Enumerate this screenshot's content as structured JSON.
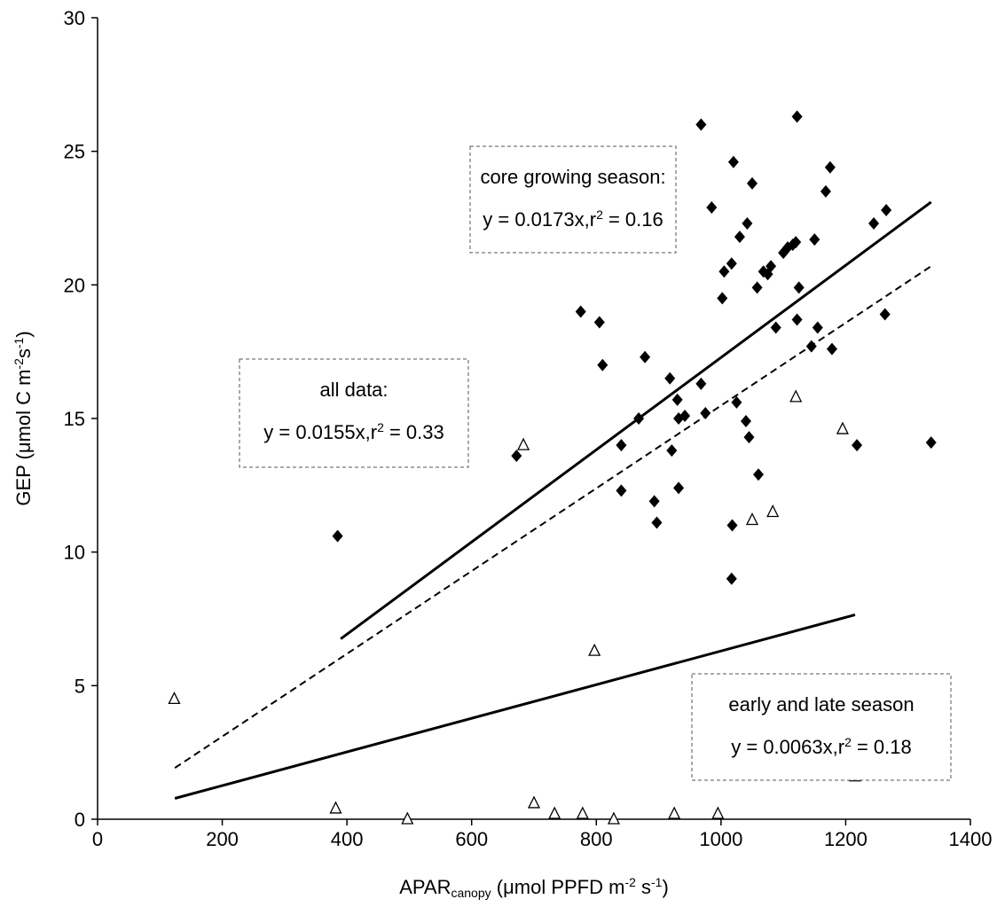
{
  "chart_data": {
    "type": "scatter",
    "xlabel": [
      {
        "text": "APAR"
      },
      {
        "text": "canopy",
        "shift": "sub"
      },
      {
        "text": " (μmol PPFD m"
      },
      {
        "text": "-2",
        "shift": "sup"
      },
      {
        "text": " s"
      },
      {
        "text": "-1",
        "shift": "sup"
      },
      {
        "text": ")"
      }
    ],
    "ylabel": [
      {
        "text": "GEP (μmol C m"
      },
      {
        "text": "-2",
        "shift": "sup"
      },
      {
        "text": "s"
      },
      {
        "text": "-1",
        "shift": "sup"
      },
      {
        "text": ")"
      }
    ],
    "xlim": [
      0,
      1400
    ],
    "xticks": [
      0,
      200,
      400,
      600,
      800,
      1000,
      1200,
      1400
    ],
    "ylim": [
      0,
      30
    ],
    "yticks": [
      0,
      5,
      10,
      15,
      20,
      25,
      30
    ],
    "series": [
      {
        "marker": "diamond",
        "color": "#000000",
        "x": [
          385,
          672,
          775,
          805,
          810,
          868,
          878,
          840,
          840,
          893,
          897,
          918,
          921,
          930,
          932,
          942,
          932,
          968,
          968,
          975,
          985,
          1002,
          1005,
          1017,
          1018,
          1017,
          1020,
          1025,
          1030,
          1042,
          1040,
          1050,
          1045,
          1058,
          1060,
          1068,
          1075,
          1080,
          1088,
          1100,
          1107,
          1115,
          1120,
          1122,
          1125,
          1122,
          1145,
          1155,
          1150,
          1168,
          1175,
          1178,
          1218,
          1245,
          1265,
          1263,
          1337
        ],
        "values": [
          10.6,
          13.6,
          19.0,
          18.6,
          17.0,
          15.0,
          17.3,
          14.0,
          12.3,
          11.9,
          11.1,
          16.5,
          13.8,
          15.7,
          15.0,
          15.1,
          12.4,
          26.0,
          16.3,
          15.2,
          22.9,
          19.5,
          20.5,
          20.8,
          11.0,
          9.0,
          24.6,
          15.6,
          21.8,
          22.3,
          14.9,
          23.8,
          14.3,
          19.9,
          12.9,
          20.5,
          20.4,
          20.7,
          18.4,
          21.2,
          21.4,
          21.5,
          21.6,
          26.3,
          19.9,
          18.7,
          17.7,
          18.4,
          21.7,
          23.5,
          24.4,
          17.6,
          14.0,
          22.3,
          22.8,
          18.9,
          14.1
        ]
      },
      {
        "marker": "triangle",
        "color": "#000000",
        "x": [
          123,
          382,
          497,
          683,
          700,
          733,
          778,
          797,
          828,
          925,
          995,
          1050,
          1083,
          1120,
          1195,
          1215
        ],
        "values": [
          4.5,
          0.4,
          0,
          14.0,
          0.6,
          0.2,
          0.2,
          6.3,
          0,
          0.2,
          0.2,
          11.2,
          11.5,
          15.8,
          14.6,
          1.6
        ]
      },
      {
        "marker": "line",
        "dash": false,
        "color": "#000000",
        "x": [
          390,
          1337
        ],
        "values": [
          6.75,
          23.1
        ]
      },
      {
        "marker": "line",
        "dash": true,
        "color": "#000000",
        "x": [
          124,
          1337
        ],
        "values": [
          1.92,
          20.7
        ]
      },
      {
        "marker": "line",
        "dash": false,
        "color": "#000000",
        "x": [
          124,
          1215
        ],
        "values": [
          0.78,
          7.65
        ]
      }
    ],
    "annotations": [
      {
        "lines": [
          [
            {
              "text": "core growing season:"
            }
          ],
          [
            {
              "text": "y = 0.0173x,r"
            },
            {
              "text": "2",
              "shift": "sup"
            },
            {
              "text": " = 0.16"
            }
          ]
        ]
      },
      {
        "lines": [
          [
            {
              "text": "all data:"
            }
          ],
          [
            {
              "text": "y = 0.0155x,r"
            },
            {
              "text": "2",
              "shift": "sup"
            },
            {
              "text": " = 0.33"
            }
          ]
        ]
      },
      {
        "lines": [
          [
            {
              "text": "early and late season"
            }
          ],
          [
            {
              "text": "y = 0.0063x,r"
            },
            {
              "text": "2",
              "shift": "sup"
            },
            {
              "text": " = 0.18"
            }
          ]
        ]
      }
    ]
  }
}
